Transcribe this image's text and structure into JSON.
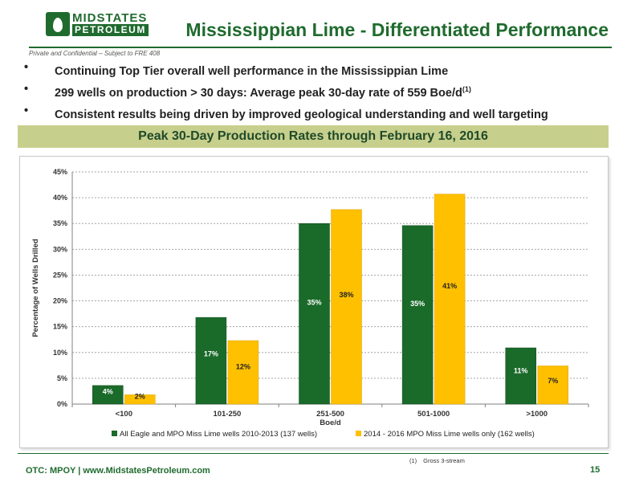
{
  "header": {
    "logo_text_1": "MIDSTATES",
    "logo_text_2": "PETROLEUM",
    "title": "Mississippian Lime - Differentiated Performance",
    "confidential": "Private and Confidential – Subject to FRE 408"
  },
  "bullets": [
    {
      "text": "Continuing Top Tier overall well performance in the Mississippian Lime",
      "sup": ""
    },
    {
      "text": "299 wells on production > 30 days: Average peak 30-day rate of 559 Boe/d",
      "sup": "(1)"
    },
    {
      "text": "Consistent results being driven by improved geological understanding and well targeting",
      "sup": ""
    }
  ],
  "banner": "Peak 30-Day Production Rates through February 16, 2016",
  "chart_data": {
    "type": "bar",
    "categories": [
      "<100",
      "101-250",
      "251-500",
      "501-1000",
      ">1000"
    ],
    "xlabel": "Boe/d",
    "ylabel": "Percentage of Wells Drilled",
    "ylim": [
      0,
      45
    ],
    "yticks": [
      "0%",
      "5%",
      "10%",
      "15%",
      "20%",
      "25%",
      "30%",
      "35%",
      "40%",
      "45%"
    ],
    "grid": true,
    "legend": "bottom",
    "series": [
      {
        "name": "All Eagle and MPO Miss Lime wells 2010-2013 (137 wells)",
        "color": "#1a6a2a",
        "values": [
          3.6,
          16.8,
          35.0,
          34.6,
          10.9
        ],
        "labels": [
          "4%",
          "17%",
          "35%",
          "35%",
          "11%"
        ]
      },
      {
        "name": "2014 - 2016 MPO Miss Lime wells only (162 wells)",
        "color": "#ffc000",
        "values": [
          1.8,
          12.3,
          37.7,
          40.7,
          7.4
        ],
        "labels": [
          "2%",
          "12%",
          "38%",
          "41%",
          "7%"
        ]
      }
    ]
  },
  "footnote": {
    "num": "(1)",
    "text": "Gross 3-stream"
  },
  "footer": {
    "text": "OTC: MPOY | www.MidstatesPetroleum.com",
    "page": "15"
  }
}
